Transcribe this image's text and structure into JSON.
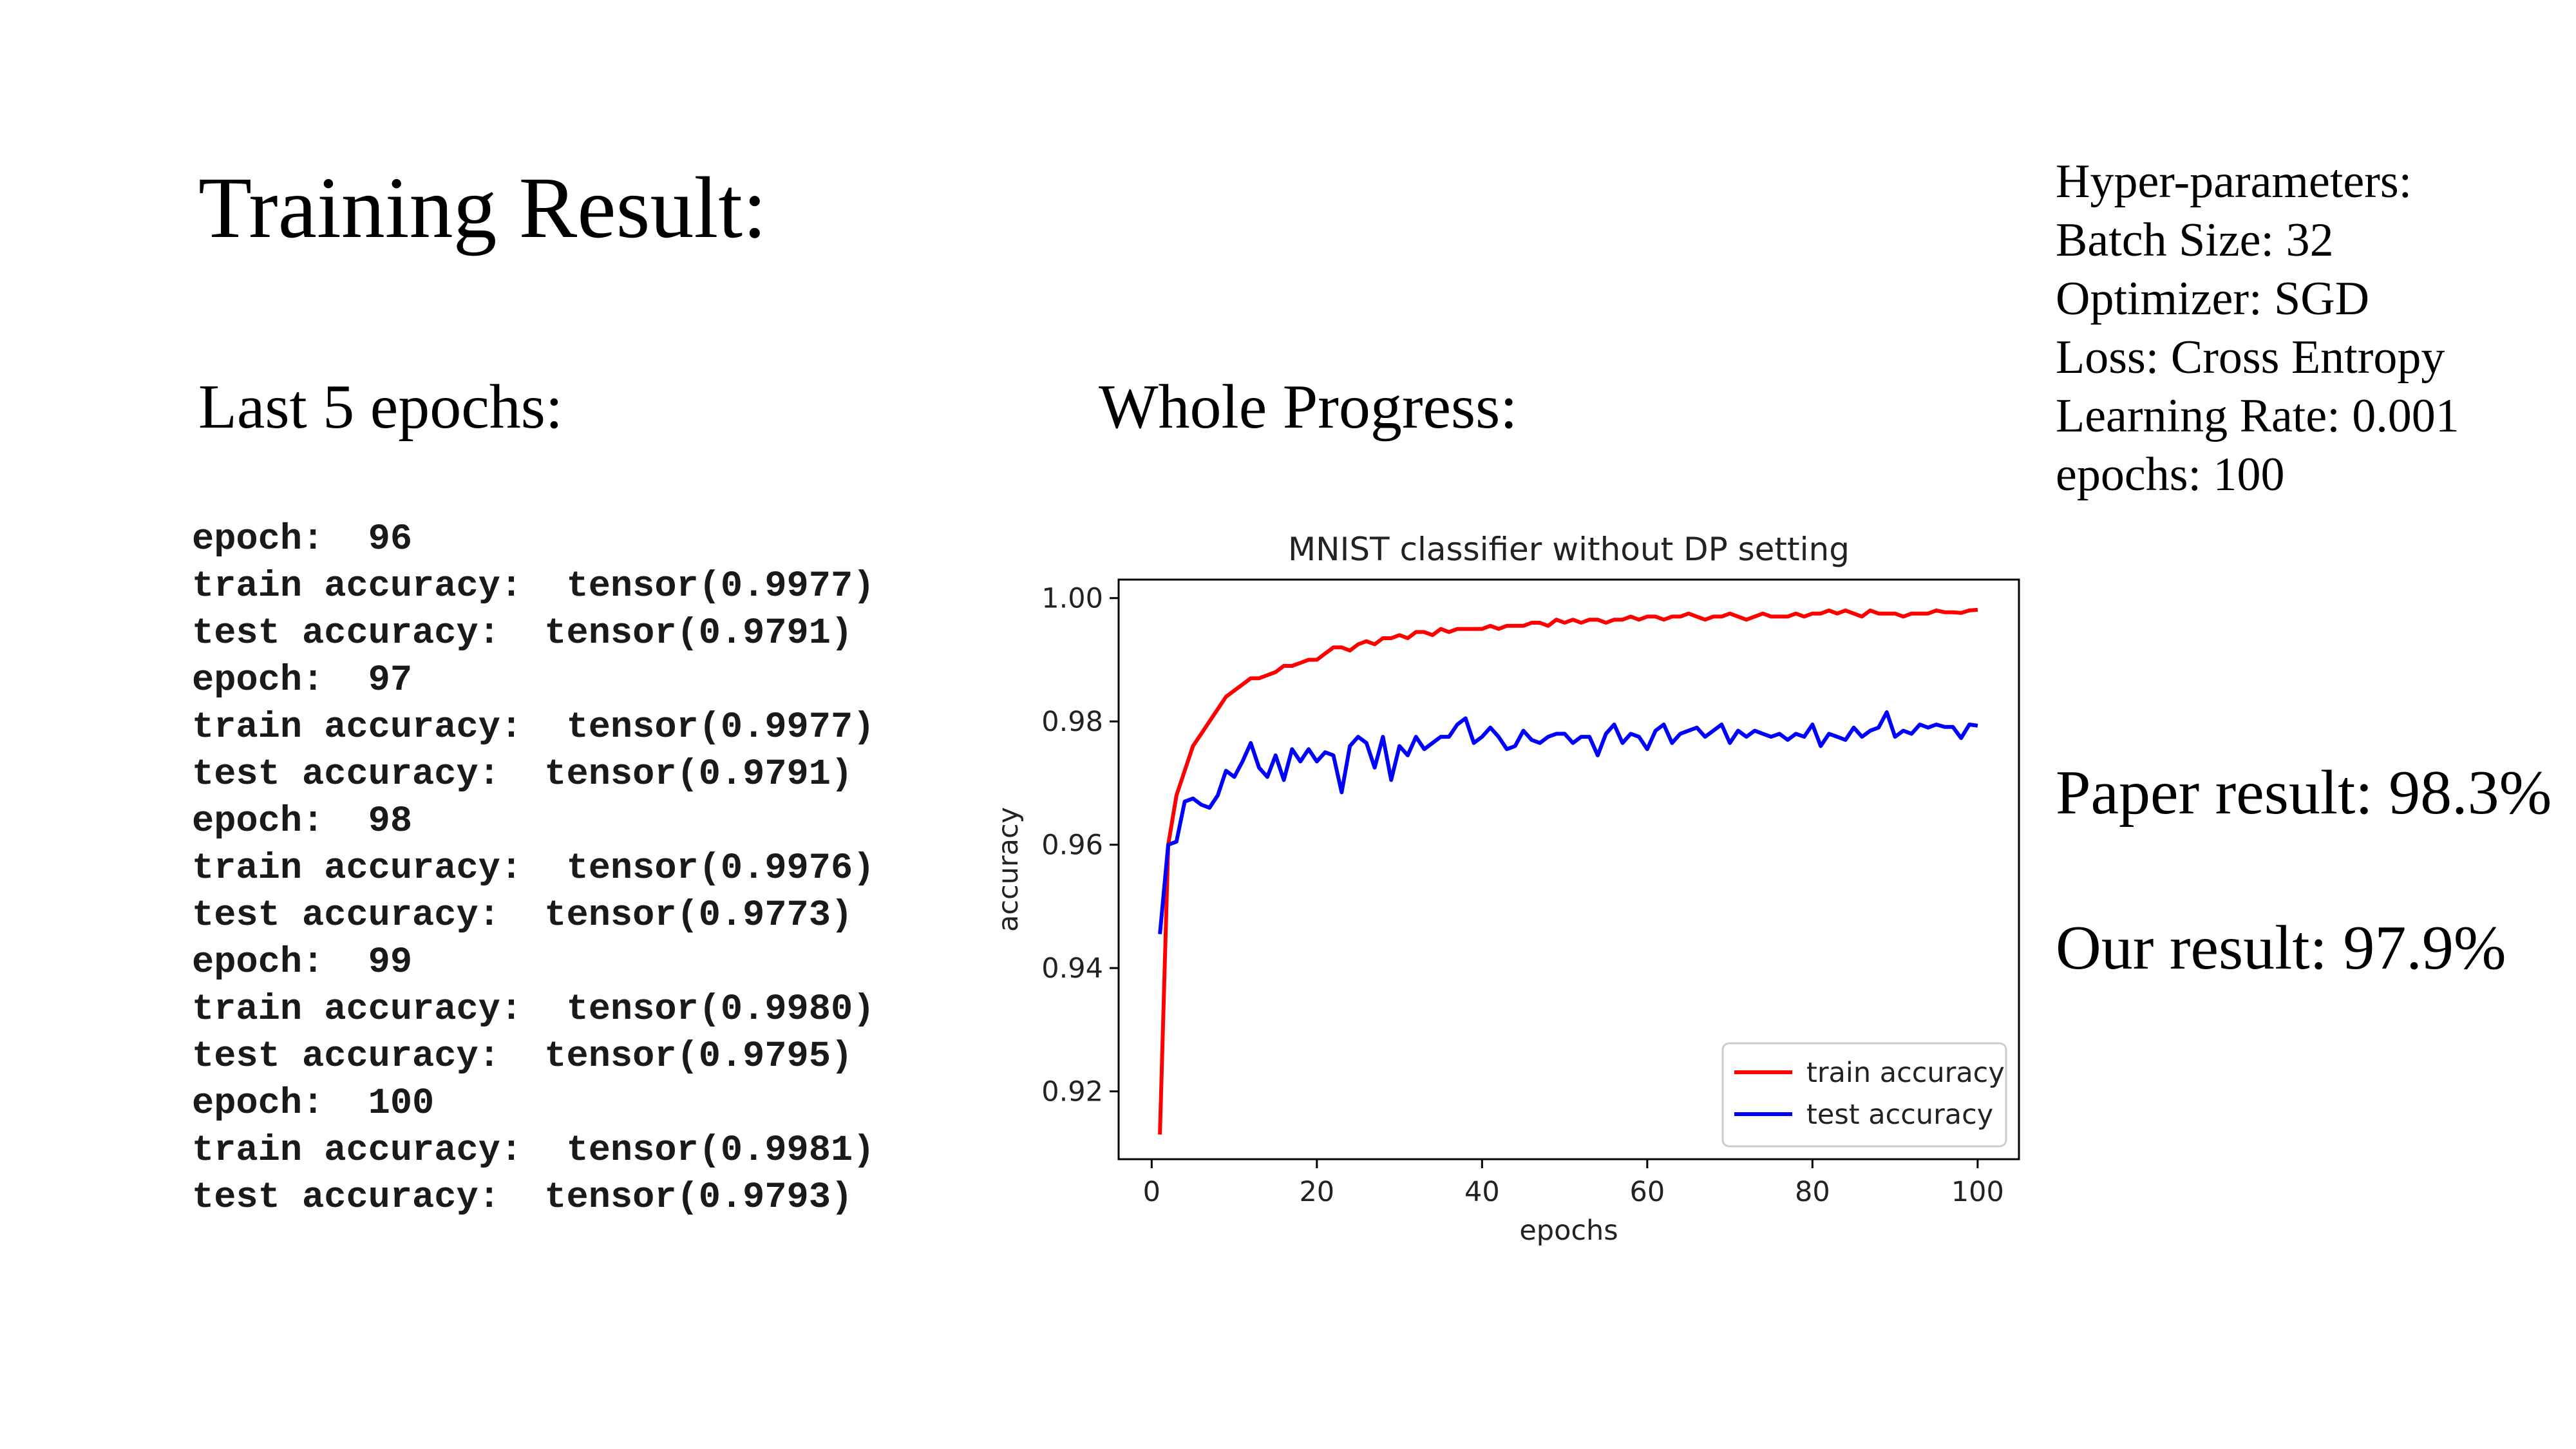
{
  "slide": {
    "title": "Training Result:",
    "left_heading": "Last 5 epochs:",
    "middle_heading": "Whole Progress:",
    "hyperparameters": [
      "Hyper-parameters:",
      "Batch Size: 32",
      "Optimizer: SGD",
      "Loss: Cross Entropy",
      "Learning Rate: 0.001",
      "epochs: 100"
    ],
    "paper_result": "Paper result: 98.3%",
    "our_result": "Our result: 97.9%",
    "log_lines": [
      "epoch:  96",
      "train accuracy:  tensor(0.9977)",
      "test accuracy:  tensor(0.9791)",
      "epoch:  97",
      "train accuracy:  tensor(0.9977)",
      "test accuracy:  tensor(0.9791)",
      "epoch:  98",
      "train accuracy:  tensor(0.9976)",
      "test accuracy:  tensor(0.9773)",
      "epoch:  99",
      "train accuracy:  tensor(0.9980)",
      "test accuracy:  tensor(0.9795)",
      "epoch:  100",
      "train accuracy:  tensor(0.9981)",
      "test accuracy:  tensor(0.9793)"
    ]
  },
  "chart_data": {
    "type": "line",
    "title": "MNIST classifier without DP setting",
    "xlabel": "epochs",
    "ylabel": "accuracy",
    "xlim": [
      -4,
      105
    ],
    "ylim": [
      0.909,
      1.003
    ],
    "xticks": [
      0,
      20,
      40,
      60,
      80,
      100
    ],
    "xtick_labels": [
      "0",
      "20",
      "40",
      "60",
      "80",
      "100"
    ],
    "yticks": [
      0.92,
      0.94,
      0.96,
      0.98,
      1.0
    ],
    "ytick_labels": [
      "0.92",
      "0.94",
      "0.96",
      "0.98",
      "1.00"
    ],
    "grid": false,
    "legend_position": "lower-right",
    "x": [
      1,
      2,
      3,
      4,
      5,
      6,
      7,
      8,
      9,
      10,
      11,
      12,
      13,
      14,
      15,
      16,
      17,
      18,
      19,
      20,
      21,
      22,
      23,
      24,
      25,
      26,
      27,
      28,
      29,
      30,
      31,
      32,
      33,
      34,
      35,
      36,
      37,
      38,
      39,
      40,
      41,
      42,
      43,
      44,
      45,
      46,
      47,
      48,
      49,
      50,
      51,
      52,
      53,
      54,
      55,
      56,
      57,
      58,
      59,
      60,
      61,
      62,
      63,
      64,
      65,
      66,
      67,
      68,
      69,
      70,
      71,
      72,
      73,
      74,
      75,
      76,
      77,
      78,
      79,
      80,
      81,
      82,
      83,
      84,
      85,
      86,
      87,
      88,
      89,
      90,
      91,
      92,
      93,
      94,
      95,
      96,
      97,
      98,
      99,
      100
    ],
    "series": [
      {
        "name": "train accuracy",
        "color": "#ff0000",
        "values": [
          0.913,
          0.96,
          0.968,
          0.972,
          0.976,
          0.978,
          0.98,
          0.982,
          0.984,
          0.985,
          0.986,
          0.987,
          0.987,
          0.9875,
          0.988,
          0.989,
          0.989,
          0.9895,
          0.99,
          0.99,
          0.991,
          0.992,
          0.992,
          0.9915,
          0.9925,
          0.993,
          0.9925,
          0.9935,
          0.9935,
          0.994,
          0.9935,
          0.9945,
          0.9945,
          0.994,
          0.995,
          0.9945,
          0.995,
          0.995,
          0.995,
          0.995,
          0.9955,
          0.995,
          0.9955,
          0.9955,
          0.9955,
          0.996,
          0.996,
          0.9955,
          0.9965,
          0.996,
          0.9965,
          0.996,
          0.9965,
          0.9965,
          0.996,
          0.9965,
          0.9965,
          0.997,
          0.9965,
          0.997,
          0.997,
          0.9965,
          0.997,
          0.997,
          0.9975,
          0.997,
          0.9965,
          0.997,
          0.997,
          0.9975,
          0.997,
          0.9965,
          0.997,
          0.9975,
          0.997,
          0.997,
          0.997,
          0.9975,
          0.997,
          0.9975,
          0.9975,
          0.998,
          0.9975,
          0.998,
          0.9975,
          0.997,
          0.998,
          0.9975,
          0.9975,
          0.9975,
          0.997,
          0.9975,
          0.9975,
          0.9975,
          0.998,
          0.9977,
          0.9977,
          0.9976,
          0.998,
          0.9981
        ]
      },
      {
        "name": "test accuracy",
        "color": "#0000ff",
        "values": [
          0.9455,
          0.96,
          0.9605,
          0.967,
          0.9675,
          0.9665,
          0.966,
          0.968,
          0.972,
          0.971,
          0.9735,
          0.9765,
          0.9725,
          0.971,
          0.9745,
          0.9705,
          0.9755,
          0.9735,
          0.9755,
          0.9735,
          0.975,
          0.9745,
          0.9685,
          0.976,
          0.9775,
          0.9765,
          0.9725,
          0.9775,
          0.9705,
          0.976,
          0.9745,
          0.9775,
          0.9755,
          0.9765,
          0.9775,
          0.9775,
          0.9795,
          0.9805,
          0.9765,
          0.9775,
          0.979,
          0.9775,
          0.9755,
          0.976,
          0.9785,
          0.977,
          0.9765,
          0.9775,
          0.978,
          0.978,
          0.9765,
          0.9775,
          0.9775,
          0.9745,
          0.978,
          0.9795,
          0.9765,
          0.978,
          0.9775,
          0.9755,
          0.9785,
          0.9795,
          0.9765,
          0.978,
          0.9785,
          0.979,
          0.9775,
          0.9785,
          0.9795,
          0.9765,
          0.9785,
          0.9775,
          0.9785,
          0.978,
          0.9775,
          0.978,
          0.977,
          0.978,
          0.9775,
          0.9795,
          0.976,
          0.978,
          0.9775,
          0.977,
          0.979,
          0.9775,
          0.9785,
          0.979,
          0.9815,
          0.9775,
          0.9785,
          0.978,
          0.9795,
          0.979,
          0.9795,
          0.9791,
          0.9791,
          0.9773,
          0.9795,
          0.9793
        ]
      }
    ]
  }
}
